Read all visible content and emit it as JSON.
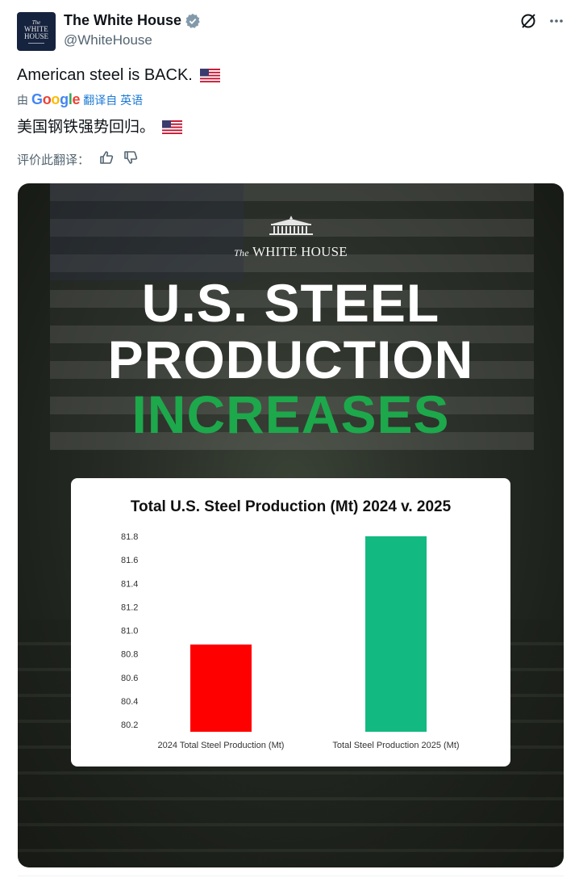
{
  "account": {
    "avatar_lines": [
      "The",
      "WHITE",
      "HOUSE"
    ],
    "display_name": "The White House",
    "handle": "@WhiteHouse"
  },
  "icons": {
    "verified": "verified-badge-icon",
    "grok": "grok-icon",
    "more": "more-icon",
    "flag": "us-flag-icon",
    "thumbs_up": "thumbs-up-icon",
    "thumbs_down": "thumbs-down-icon"
  },
  "tweet": {
    "text": "American steel is BACK."
  },
  "translation": {
    "by_label": "由",
    "google": [
      "G",
      "o",
      "o",
      "g",
      "l",
      "e"
    ],
    "link_label": "翻译自 英语",
    "translated_text": "美国钢铁强势回归。",
    "rate_label": "评价此翻译："
  },
  "media": {
    "brand_the": "The",
    "brand_name": "WHITE HOUSE",
    "headline_1": "U.S. STEEL",
    "headline_2": "PRODUCTION",
    "headline_3": "INCREASES",
    "headline_3_color": "#1da84b"
  },
  "chart_data": {
    "type": "bar",
    "title": "Total U.S. Steel Production (Mt) 2024 v. 2025",
    "categories": [
      "2024 Total Steel Production (Mt)",
      "Total Steel Production 2025 (Mt)"
    ],
    "values": [
      80.88,
      81.8
    ],
    "colors": [
      "#ff0000",
      "#12b981"
    ],
    "ylim": [
      80.2,
      81.8
    ],
    "yticks": [
      80.2,
      80.4,
      80.6,
      80.8,
      81.0,
      81.2,
      81.4,
      81.6,
      81.8
    ],
    "ytick_labels": [
      "80.2",
      "80.4",
      "80.6",
      "80.8",
      "81.0",
      "81.2",
      "81.4",
      "81.6",
      "81.8"
    ],
    "xlabel": "",
    "ylabel": "",
    "grid": false
  }
}
